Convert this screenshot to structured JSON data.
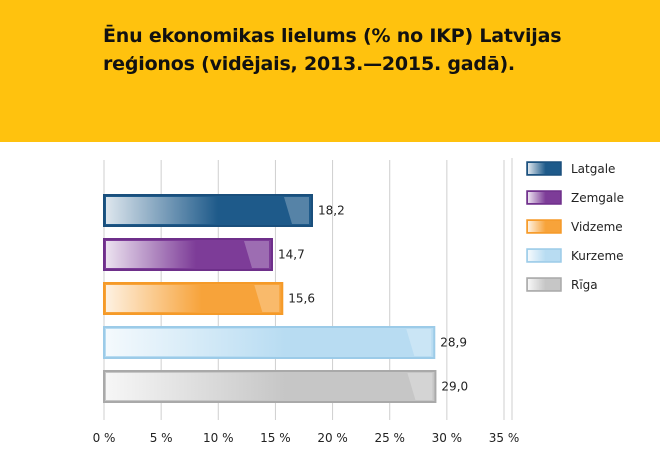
{
  "chart_data": {
    "type": "bar",
    "orientation": "horizontal",
    "title": "Ēnu ekonomikas lielums (% no IKP) Latvijas reģionos (vidējais, 2013.—2015. gadā).",
    "categories": [
      "Latgale",
      "Zemgale",
      "Vidzeme",
      "Kurzeme",
      "Rīga"
    ],
    "values": [
      18.2,
      14.7,
      15.6,
      28.9,
      29.0
    ],
    "value_labels": [
      "18,2",
      "14,7",
      "15,6",
      "28,9",
      "29,0"
    ],
    "colors": [
      "#1e5a8a",
      "#7d3c98",
      "#f7a33a",
      "#b8dcf2",
      "#c6c6c6"
    ],
    "border_colors": [
      "#1a4f7c",
      "#6e2f8a",
      "#f59a28",
      "#9ccbe8",
      "#a9a9a9"
    ],
    "xlim": [
      0,
      35
    ],
    "xticks": [
      0,
      5,
      10,
      15,
      20,
      25,
      30,
      35
    ],
    "xtick_labels": [
      "0 %",
      "5 %",
      "10 %",
      "15 %",
      "20 %",
      "25 %",
      "30 %",
      "35 %"
    ],
    "xlabel": "",
    "ylabel": "",
    "grid": true,
    "legend_position": "right"
  },
  "header_color": "#ffc20e"
}
